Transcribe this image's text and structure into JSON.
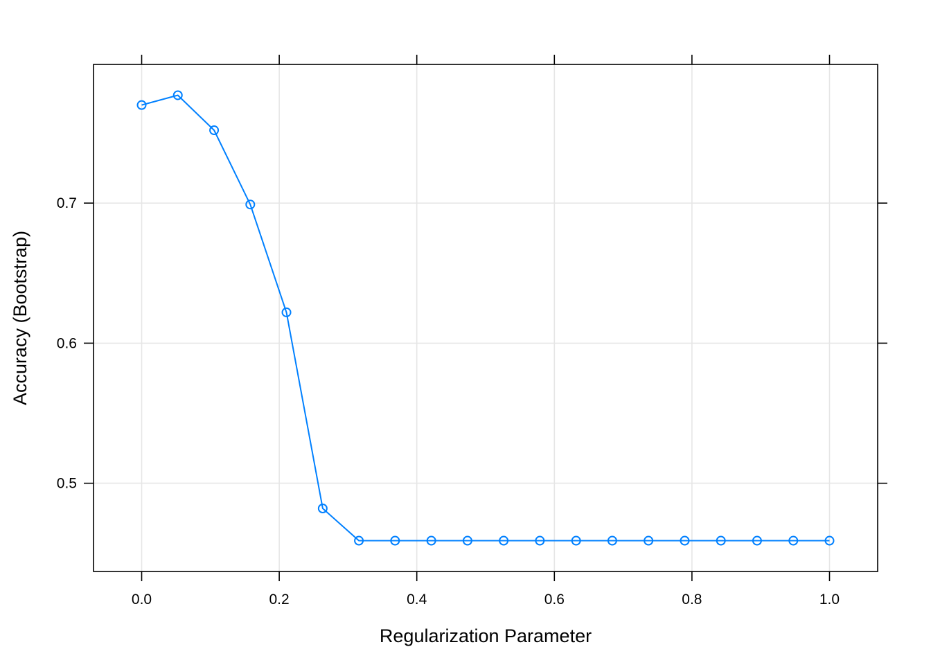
{
  "chart_data": {
    "type": "line",
    "title": "",
    "xlabel": "Regularization Parameter",
    "ylabel": "Accuracy (Bootstrap)",
    "xlim": [
      -0.07,
      1.07
    ],
    "ylim": [
      0.437,
      0.799
    ],
    "x_ticks": [
      0.0,
      0.2,
      0.4,
      0.6,
      0.8,
      1.0
    ],
    "x_tick_labels": [
      "0.0",
      "0.2",
      "0.4",
      "0.6",
      "0.8",
      "1.0"
    ],
    "y_ticks": [
      0.5,
      0.6,
      0.7
    ],
    "y_tick_labels": [
      "0.5",
      "0.6",
      "0.7"
    ],
    "grid": true,
    "marker": "open-circle",
    "series": [
      {
        "color": "#0080ff",
        "x": [
          0.0,
          0.0526,
          0.1053,
          0.1579,
          0.2105,
          0.2632,
          0.3158,
          0.3684,
          0.4211,
          0.4737,
          0.5263,
          0.5789,
          0.6316,
          0.6842,
          0.7368,
          0.7895,
          0.8421,
          0.8947,
          0.9474,
          1.0
        ],
        "y": [
          0.77,
          0.777,
          0.752,
          0.699,
          0.622,
          0.482,
          0.459,
          0.459,
          0.459,
          0.459,
          0.459,
          0.459,
          0.459,
          0.459,
          0.459,
          0.459,
          0.459,
          0.459,
          0.459,
          0.459
        ]
      }
    ]
  },
  "colors": {
    "line": "#0080ff",
    "grid": "#e6e6e6",
    "frame": "#000000"
  }
}
